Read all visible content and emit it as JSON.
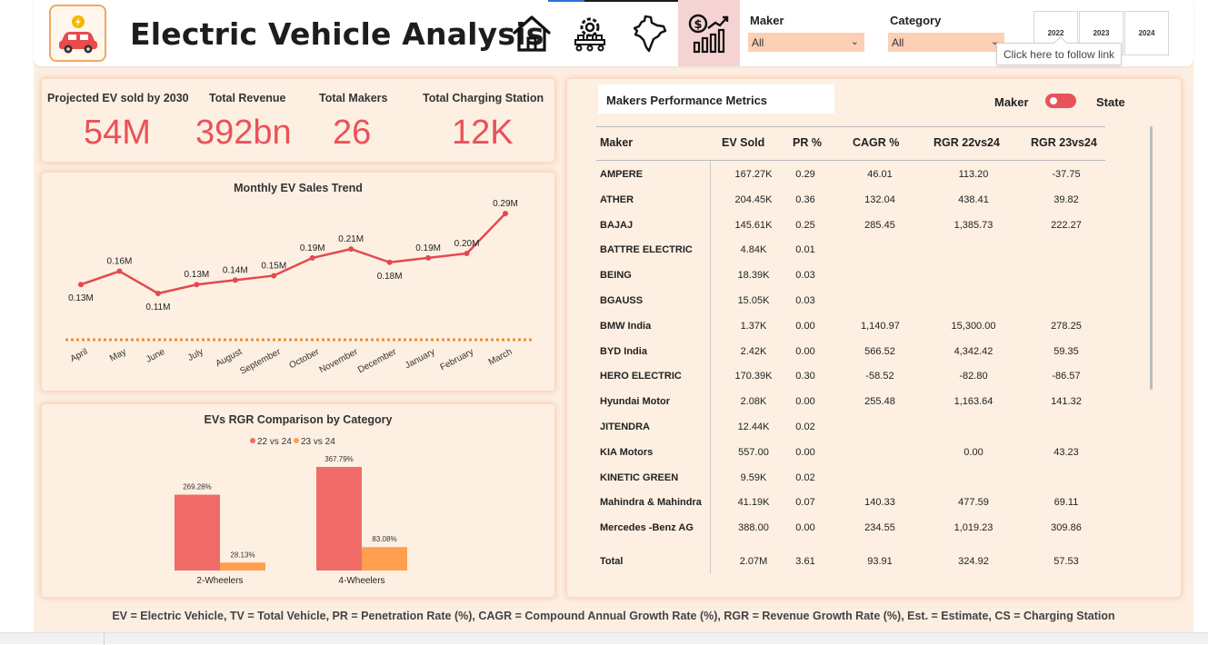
{
  "header": {
    "title": "Electric Vehicle Analysis",
    "nav": [
      {
        "name": "home",
        "icon": "house-icon"
      },
      {
        "name": "manufacturing",
        "icon": "gear-factory-icon"
      },
      {
        "name": "india-map",
        "icon": "india-map-icon"
      },
      {
        "name": "revenue-growth",
        "icon": "dollar-growth-chart-icon",
        "active": true
      }
    ],
    "maker_label": "Maker",
    "maker_value": "All",
    "category_label": "Category",
    "category_value": "All",
    "years": [
      "2022",
      "2023",
      "2024"
    ],
    "tooltip": "Click here to follow link"
  },
  "kpis": [
    {
      "label": "Projected EV sold by 2030",
      "value": "54M"
    },
    {
      "label": "Total Revenue",
      "value": "392bn"
    },
    {
      "label": "Total Makers",
      "value": "26"
    },
    {
      "label": "Total Charging Station",
      "value": "12K"
    }
  ],
  "trend": {
    "title": "Monthly EV Sales Trend",
    "months": [
      "April",
      "May",
      "June",
      "July",
      "August",
      "September",
      "October",
      "November",
      "December",
      "January",
      "February",
      "March"
    ],
    "labels": [
      "0.13M",
      "0.16M",
      "0.11M",
      "0.13M",
      "0.14M",
      "0.15M",
      "0.19M",
      "0.21M",
      "0.18M",
      "0.19M",
      "0.20M",
      "0.29M"
    ],
    "color": "#e34a4f",
    "trend_line_color": "#f08c2a"
  },
  "chart_data": {
    "type": "bar",
    "title": "EVs RGR Comparison by Category",
    "categories": [
      "2-Wheelers",
      "4-Wheelers"
    ],
    "series": [
      {
        "name": "22 vs 24",
        "values": [
          269.28,
          367.79
        ],
        "labels": [
          "269.28%",
          "367.79%"
        ],
        "color": "#f06b68"
      },
      {
        "name": "23 vs 24",
        "values": [
          28.13,
          83.08
        ],
        "labels": [
          "28.13%",
          "83.08%"
        ],
        "color": "#ff9f4f"
      }
    ],
    "ylim": [
      0,
      400
    ]
  },
  "metrics": {
    "title": "Makers Performance Metrics",
    "toggle_left": "Maker",
    "toggle_right": "State",
    "headers": [
      "Maker",
      "EV Sold",
      "PR %",
      "CAGR %",
      "RGR 22vs24",
      "RGR 23vs24"
    ],
    "rows": [
      [
        "AMPERE",
        "167.27K",
        "0.29",
        "46.01",
        "113.20",
        "-37.75"
      ],
      [
        "ATHER",
        "204.45K",
        "0.36",
        "132.04",
        "438.41",
        "39.82"
      ],
      [
        "BAJAJ",
        "145.61K",
        "0.25",
        "285.45",
        "1,385.73",
        "222.27"
      ],
      [
        "BATTRE ELECTRIC",
        "4.84K",
        "0.01",
        "",
        "",
        ""
      ],
      [
        "BEING",
        "18.39K",
        "0.03",
        "",
        "",
        ""
      ],
      [
        "BGAUSS",
        "15.05K",
        "0.03",
        "",
        "",
        ""
      ],
      [
        "BMW India",
        "1.37K",
        "0.00",
        "1,140.97",
        "15,300.00",
        "278.25"
      ],
      [
        "BYD India",
        "2.42K",
        "0.00",
        "566.52",
        "4,342.42",
        "59.35"
      ],
      [
        "HERO ELECTRIC",
        "170.39K",
        "0.30",
        "-58.52",
        "-82.80",
        "-86.57"
      ],
      [
        "Hyundai Motor",
        "2.08K",
        "0.00",
        "255.48",
        "1,163.64",
        "141.32"
      ],
      [
        "JITENDRA",
        "12.44K",
        "0.02",
        "",
        "",
        ""
      ],
      [
        "KIA Motors",
        "557.00",
        "0.00",
        "",
        "0.00",
        "43.23"
      ],
      [
        "KINETIC GREEN",
        "9.59K",
        "0.02",
        "",
        "",
        ""
      ],
      [
        "Mahindra & Mahindra",
        "41.19K",
        "0.07",
        "140.33",
        "477.59",
        "69.11"
      ],
      [
        "Mercedes -Benz AG",
        "388.00",
        "0.00",
        "234.55",
        "1,019.23",
        "309.86"
      ]
    ],
    "total": [
      "Total",
      "2.07M",
      "3.61",
      "93.91",
      "324.92",
      "57.53"
    ]
  },
  "footer": "EV = Electric Vehicle, TV = Total Vehicle, PR = Penetration Rate (%), CAGR = Compound Annual Growth Rate (%), RGR = Revenue Growth Rate (%), Est. = Estimate, CS = Charging Station",
  "colors": {
    "accent": "#e9525a",
    "background": "#fcefe2",
    "slicer": "#fbd0b5"
  }
}
